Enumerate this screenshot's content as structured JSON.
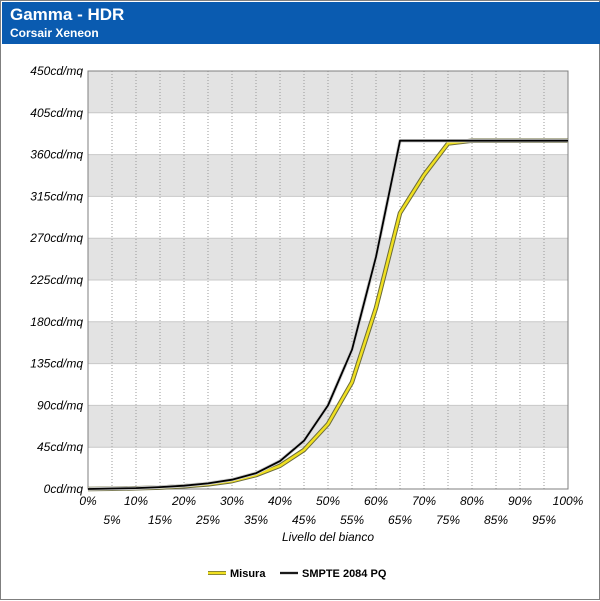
{
  "header": {
    "title": "Gamma - HDR",
    "subtitle": "Corsair Xeneon",
    "background": "#0a5bb0"
  },
  "chart_data": {
    "type": "line",
    "title": "Gamma - HDR",
    "subtitle": "Corsair Xeneon",
    "xlabel": "Livello del bianco",
    "ylabel": "",
    "x": [
      0,
      5,
      10,
      15,
      20,
      25,
      30,
      35,
      40,
      45,
      50,
      55,
      60,
      65,
      70,
      75,
      80,
      85,
      90,
      95,
      100
    ],
    "x_tick_labels": [
      "0%",
      "5%",
      "10%",
      "15%",
      "20%",
      "25%",
      "30%",
      "35%",
      "40%",
      "45%",
      "50%",
      "55%",
      "60%",
      "65%",
      "70%",
      "75%",
      "80%",
      "85%",
      "90%",
      "95%",
      "100%"
    ],
    "y_ticks": [
      0,
      45,
      90,
      135,
      180,
      225,
      270,
      315,
      360,
      405,
      450
    ],
    "y_tick_labels": [
      "0cd/mq",
      "45cd/mq",
      "90cd/mq",
      "135cd/mq",
      "180cd/mq",
      "225cd/mq",
      "270cd/mq",
      "315cd/mq",
      "360cd/mq",
      "405cd/mq",
      "450cd/mq"
    ],
    "xlim": [
      0,
      100
    ],
    "ylim": [
      0,
      450
    ],
    "grid": true,
    "legend_position": "bottom",
    "series": [
      {
        "name": "Misura",
        "color": "#f0e020",
        "values": [
          0,
          0.3,
          0.8,
          1.5,
          3,
          5,
          8.5,
          15,
          25,
          42,
          70,
          115,
          195,
          297,
          338,
          372,
          375,
          375,
          375,
          375,
          375
        ]
      },
      {
        "name": "SMPTE 2084 PQ",
        "color": "#000000",
        "values": [
          0,
          0.5,
          1,
          2,
          3.5,
          6,
          10,
          17,
          30,
          52,
          90,
          150,
          250,
          375,
          375,
          375,
          375,
          375,
          375,
          375,
          375
        ]
      }
    ]
  }
}
